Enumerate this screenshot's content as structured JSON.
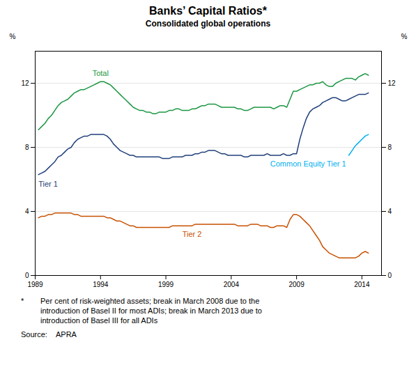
{
  "chart_data": {
    "type": "line",
    "title": "Banks’ Capital Ratios*",
    "subtitle": "Consolidated global operations",
    "ylabel": "%",
    "ylabel_right": "%",
    "xlim": [
      1989,
      2015.5
    ],
    "xticks": [
      1989,
      1994,
      1999,
      2004,
      2009,
      2014
    ],
    "ylim": [
      0,
      14
    ],
    "yticks": [
      0,
      4,
      8,
      12
    ],
    "grid": true,
    "series": [
      {
        "name": "Total",
        "color": "#1a9641",
        "x": [
          1989.25,
          1989.5,
          1989.75,
          1990.0,
          1990.25,
          1990.5,
          1990.75,
          1991.0,
          1991.25,
          1991.5,
          1991.75,
          1992.0,
          1992.25,
          1992.5,
          1992.75,
          1993.0,
          1993.25,
          1993.5,
          1993.75,
          1994.0,
          1994.25,
          1994.5,
          1994.75,
          1995.0,
          1995.25,
          1995.5,
          1995.75,
          1996.0,
          1996.25,
          1996.5,
          1996.75,
          1997.0,
          1997.25,
          1997.5,
          1997.75,
          1998.0,
          1998.25,
          1998.5,
          1998.75,
          1999.0,
          1999.25,
          1999.5,
          1999.75,
          2000.0,
          2000.25,
          2000.5,
          2000.75,
          2001.0,
          2001.25,
          2001.5,
          2001.75,
          2002.0,
          2002.25,
          2002.5,
          2002.75,
          2003.0,
          2003.25,
          2003.5,
          2003.75,
          2004.0,
          2004.25,
          2004.5,
          2004.75,
          2005.0,
          2005.25,
          2005.5,
          2005.75,
          2006.0,
          2006.25,
          2006.5,
          2006.75,
          2007.0,
          2007.25,
          2007.5,
          2007.75,
          2008.0,
          2008.25,
          2008.5,
          2008.75,
          2009.0,
          2009.25,
          2009.5,
          2009.75,
          2010.0,
          2010.25,
          2010.5,
          2010.75,
          2011.0,
          2011.25,
          2011.5,
          2011.75,
          2012.0,
          2012.25,
          2012.5,
          2012.75,
          2013.0,
          2013.25,
          2013.5,
          2013.75,
          2014.0,
          2014.25,
          2014.5
        ],
        "values": [
          9.1,
          9.3,
          9.5,
          9.8,
          10.0,
          10.3,
          10.6,
          10.8,
          10.9,
          11.0,
          11.2,
          11.4,
          11.5,
          11.6,
          11.6,
          11.7,
          11.8,
          11.9,
          12.0,
          12.1,
          12.1,
          12.0,
          11.9,
          11.7,
          11.5,
          11.3,
          11.1,
          10.9,
          10.7,
          10.5,
          10.4,
          10.3,
          10.3,
          10.2,
          10.2,
          10.1,
          10.1,
          10.2,
          10.2,
          10.2,
          10.3,
          10.3,
          10.4,
          10.4,
          10.3,
          10.3,
          10.3,
          10.4,
          10.4,
          10.5,
          10.6,
          10.6,
          10.7,
          10.7,
          10.7,
          10.6,
          10.5,
          10.5,
          10.5,
          10.5,
          10.5,
          10.4,
          10.4,
          10.3,
          10.3,
          10.4,
          10.5,
          10.5,
          10.5,
          10.5,
          10.5,
          10.5,
          10.4,
          10.5,
          10.6,
          10.6,
          10.5,
          11.0,
          11.5,
          11.5,
          11.6,
          11.7,
          11.8,
          11.9,
          11.9,
          12.0,
          12.0,
          12.1,
          11.9,
          11.8,
          11.8,
          12.0,
          12.1,
          12.2,
          12.3,
          12.3,
          12.3,
          12.2,
          12.4,
          12.5,
          12.6,
          12.5
        ]
      },
      {
        "name": "Tier 1",
        "color": "#1f3f7a",
        "x": [
          1989.25,
          1989.5,
          1989.75,
          1990.0,
          1990.25,
          1990.5,
          1990.75,
          1991.0,
          1991.25,
          1991.5,
          1991.75,
          1992.0,
          1992.25,
          1992.5,
          1992.75,
          1993.0,
          1993.25,
          1993.5,
          1993.75,
          1994.0,
          1994.25,
          1994.5,
          1994.75,
          1995.0,
          1995.25,
          1995.5,
          1995.75,
          1996.0,
          1996.25,
          1996.5,
          1996.75,
          1997.0,
          1997.25,
          1997.5,
          1997.75,
          1998.0,
          1998.25,
          1998.5,
          1998.75,
          1999.0,
          1999.25,
          1999.5,
          1999.75,
          2000.0,
          2000.25,
          2000.5,
          2000.75,
          2001.0,
          2001.25,
          2001.5,
          2001.75,
          2002.0,
          2002.25,
          2002.5,
          2002.75,
          2003.0,
          2003.25,
          2003.5,
          2003.75,
          2004.0,
          2004.25,
          2004.5,
          2004.75,
          2005.0,
          2005.25,
          2005.5,
          2005.75,
          2006.0,
          2006.25,
          2006.5,
          2006.75,
          2007.0,
          2007.25,
          2007.5,
          2007.75,
          2008.0,
          2008.25,
          2008.5,
          2008.75,
          2009.0,
          2009.0,
          2009.25,
          2009.5,
          2009.75,
          2010.0,
          2010.25,
          2010.5,
          2010.75,
          2011.0,
          2011.25,
          2011.5,
          2011.75,
          2012.0,
          2012.25,
          2012.5,
          2012.75,
          2013.0,
          2013.25,
          2013.5,
          2013.75,
          2014.0,
          2014.25,
          2014.5
        ],
        "values": [
          6.3,
          6.4,
          6.5,
          6.7,
          6.9,
          7.1,
          7.4,
          7.5,
          7.7,
          7.9,
          8.0,
          8.3,
          8.5,
          8.6,
          8.7,
          8.7,
          8.8,
          8.8,
          8.8,
          8.8,
          8.8,
          8.7,
          8.5,
          8.2,
          8.0,
          7.8,
          7.7,
          7.6,
          7.5,
          7.5,
          7.4,
          7.4,
          7.4,
          7.4,
          7.4,
          7.4,
          7.4,
          7.4,
          7.3,
          7.3,
          7.3,
          7.4,
          7.4,
          7.4,
          7.4,
          7.5,
          7.5,
          7.5,
          7.6,
          7.6,
          7.7,
          7.7,
          7.8,
          7.8,
          7.8,
          7.7,
          7.6,
          7.6,
          7.5,
          7.5,
          7.5,
          7.5,
          7.5,
          7.4,
          7.4,
          7.5,
          7.5,
          7.5,
          7.5,
          7.5,
          7.6,
          7.5,
          7.5,
          7.5,
          7.5,
          7.6,
          7.5,
          7.5,
          7.6,
          7.6,
          7.6,
          8.5,
          9.2,
          9.8,
          10.2,
          10.4,
          10.5,
          10.6,
          10.8,
          10.9,
          11.0,
          11.1,
          11.1,
          11.0,
          10.9,
          10.9,
          11.0,
          11.1,
          11.2,
          11.3,
          11.3,
          11.3,
          11.4
        ]
      },
      {
        "name": "Tier 2",
        "color": "#c85000",
        "x": [
          1989.25,
          1989.5,
          1989.75,
          1990.0,
          1990.25,
          1990.5,
          1990.75,
          1991.0,
          1991.25,
          1991.5,
          1991.75,
          1992.0,
          1992.25,
          1992.5,
          1992.75,
          1993.0,
          1993.25,
          1993.5,
          1993.75,
          1994.0,
          1994.25,
          1994.5,
          1994.75,
          1995.0,
          1995.25,
          1995.5,
          1995.75,
          1996.0,
          1996.25,
          1996.5,
          1996.75,
          1997.0,
          1997.25,
          1997.5,
          1997.75,
          1998.0,
          1998.25,
          1998.5,
          1998.75,
          1999.0,
          1999.25,
          1999.5,
          1999.75,
          2000.0,
          2000.25,
          2000.5,
          2000.75,
          2001.0,
          2001.25,
          2001.5,
          2001.75,
          2002.0,
          2002.25,
          2002.5,
          2002.75,
          2003.0,
          2003.25,
          2003.5,
          2003.75,
          2004.0,
          2004.25,
          2004.5,
          2004.75,
          2005.0,
          2005.25,
          2005.5,
          2005.75,
          2006.0,
          2006.25,
          2006.5,
          2006.75,
          2007.0,
          2007.25,
          2007.5,
          2007.75,
          2008.0,
          2008.25,
          2008.5,
          2008.75,
          2009.0,
          2009.25,
          2009.5,
          2009.75,
          2010.0,
          2010.25,
          2010.5,
          2010.75,
          2011.0,
          2011.25,
          2011.5,
          2011.75,
          2012.0,
          2012.25,
          2012.5,
          2012.75,
          2013.0,
          2013.25,
          2013.5,
          2013.75,
          2014.0,
          2014.25,
          2014.5
        ],
        "values": [
          3.6,
          3.7,
          3.7,
          3.8,
          3.8,
          3.9,
          3.9,
          3.9,
          3.9,
          3.9,
          3.9,
          3.8,
          3.8,
          3.7,
          3.7,
          3.7,
          3.7,
          3.7,
          3.7,
          3.7,
          3.7,
          3.6,
          3.6,
          3.5,
          3.4,
          3.4,
          3.3,
          3.2,
          3.1,
          3.1,
          3.0,
          3.0,
          3.0,
          3.0,
          3.0,
          3.0,
          3.0,
          3.0,
          3.0,
          3.0,
          3.0,
          3.1,
          3.1,
          3.1,
          3.1,
          3.1,
          3.1,
          3.1,
          3.2,
          3.2,
          3.2,
          3.2,
          3.2,
          3.2,
          3.2,
          3.2,
          3.2,
          3.2,
          3.2,
          3.2,
          3.2,
          3.1,
          3.1,
          3.1,
          3.1,
          3.2,
          3.2,
          3.2,
          3.1,
          3.1,
          3.1,
          3.0,
          3.0,
          3.1,
          3.1,
          3.1,
          3.0,
          3.5,
          3.8,
          3.8,
          3.7,
          3.5,
          3.3,
          3.1,
          2.8,
          2.5,
          2.2,
          1.8,
          1.6,
          1.4,
          1.3,
          1.2,
          1.1,
          1.1,
          1.1,
          1.1,
          1.1,
          1.1,
          1.2,
          1.4,
          1.5,
          1.4
        ]
      },
      {
        "name": "Common Equity Tier 1",
        "color": "#00b0f0",
        "x": [
          2013.0,
          2013.25,
          2013.5,
          2013.75,
          2014.0,
          2014.25,
          2014.5
        ],
        "values": [
          7.5,
          7.8,
          8.1,
          8.3,
          8.5,
          8.7,
          8.8
        ]
      }
    ],
    "footnote_star": "*",
    "footnote_text": "Per cent of risk-weighted assets; break in March 2008 due to the\nintroduction of Basel II for most ADIs; break in March 2013 due to\nintroduction of Basel III for all ADIs",
    "source_label": "Source:",
    "source_value": "APRA"
  }
}
